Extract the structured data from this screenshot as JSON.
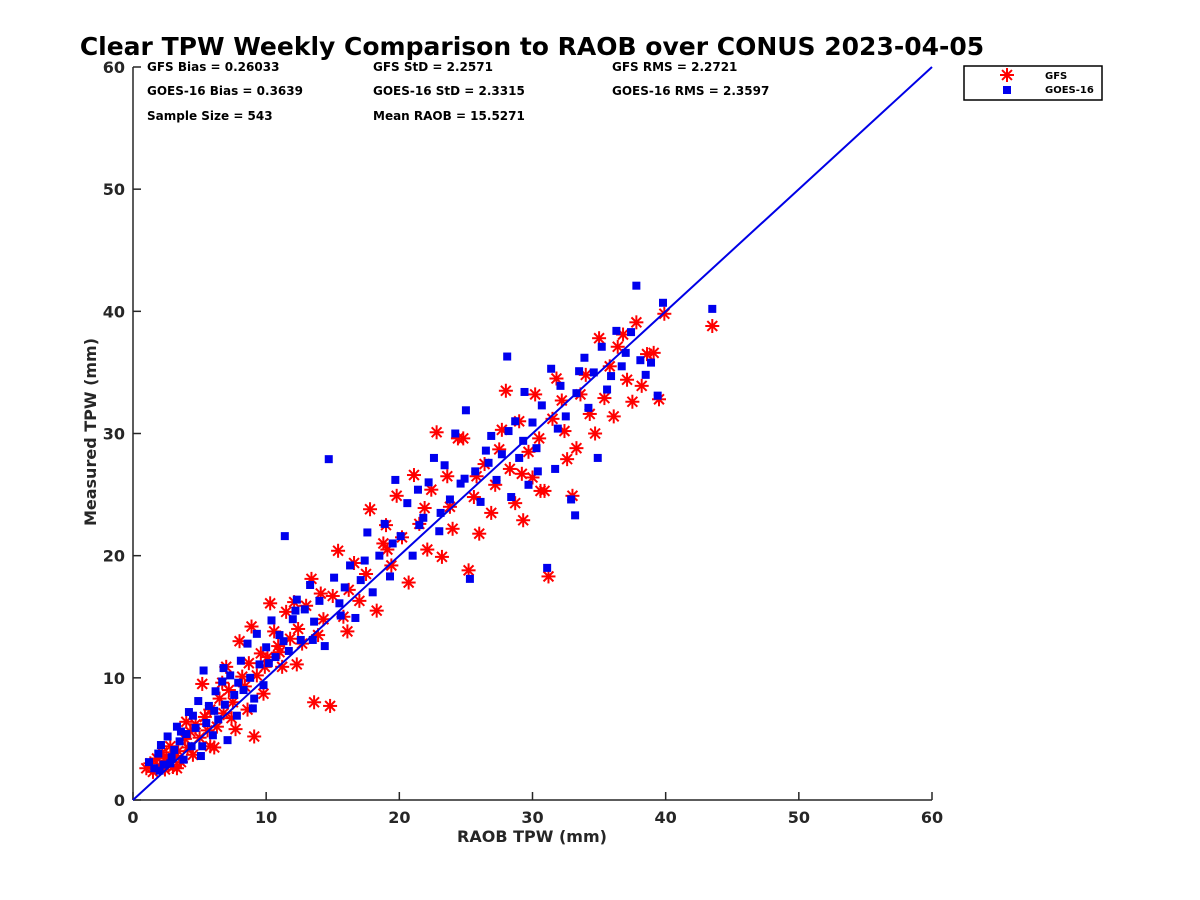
{
  "chart_data": {
    "type": "scatter",
    "title": "Clear TPW Weekly Comparison to RAOB over CONUS 2023-04-05",
    "xlabel": "RAOB TPW (mm)",
    "ylabel": "Measured TPW (mm)",
    "xlim": [
      0,
      60
    ],
    "ylim": [
      0,
      60
    ],
    "xticks": [
      "0",
      "10",
      "20",
      "30",
      "40",
      "50",
      "60"
    ],
    "yticks": [
      "0",
      "10",
      "20",
      "30",
      "40",
      "50",
      "60"
    ],
    "grid": false,
    "legend_position": "outside-top-right",
    "reference_line": {
      "from": [
        0,
        0
      ],
      "to": [
        60,
        60
      ],
      "color": "#0000e6"
    },
    "stats": [
      "GFS Bias = 0.26033",
      "GFS StD = 2.2571",
      "GFS RMS = 2.2721",
      "GOES-16 Bias = 0.3639",
      "GOES-16 StD = 2.3315",
      "GOES-16 RMS = 2.3597",
      "Sample Size = 543",
      "Mean RAOB = 15.5271"
    ],
    "series": [
      {
        "name": "GFS",
        "marker": "asterisk",
        "color": "#ff0000",
        "points": [
          [
            1.0,
            2.6
          ],
          [
            1.3,
            3.0
          ],
          [
            1.5,
            2.3
          ],
          [
            1.8,
            3.4
          ],
          [
            2.0,
            2.8
          ],
          [
            2.2,
            3.9
          ],
          [
            2.4,
            2.5
          ],
          [
            2.6,
            3.2
          ],
          [
            2.8,
            4.4
          ],
          [
            3.0,
            2.7
          ],
          [
            3.2,
            3.6
          ],
          [
            3.4,
            4.0
          ],
          [
            3.6,
            3.1
          ],
          [
            3.9,
            5.0
          ],
          [
            4.1,
            4.3
          ],
          [
            4.3,
            5.6
          ],
          [
            4.5,
            3.7
          ],
          [
            4.7,
            6.2
          ],
          [
            5.0,
            5.1
          ],
          [
            5.2,
            9.5
          ],
          [
            5.4,
            6.8
          ],
          [
            5.6,
            5.7
          ],
          [
            5.8,
            7.4
          ],
          [
            6.1,
            4.3
          ],
          [
            6.3,
            6.0
          ],
          [
            6.5,
            8.3
          ],
          [
            6.8,
            7.1
          ],
          [
            7.0,
            10.9
          ],
          [
            7.2,
            9.0
          ],
          [
            7.5,
            8.0
          ],
          [
            7.7,
            5.8
          ],
          [
            8.0,
            13.0
          ],
          [
            8.2,
            10.1
          ],
          [
            8.4,
            9.3
          ],
          [
            8.7,
            11.2
          ],
          [
            8.9,
            14.2
          ],
          [
            9.1,
            5.2
          ],
          [
            9.3,
            10.2
          ],
          [
            9.6,
            12.0
          ],
          [
            9.8,
            8.7
          ],
          [
            10.1,
            11.7
          ],
          [
            10.3,
            16.1
          ],
          [
            10.6,
            13.8
          ],
          [
            10.9,
            12.6
          ],
          [
            11.2,
            10.9
          ],
          [
            11.5,
            15.4
          ],
          [
            11.8,
            13.2
          ],
          [
            12.1,
            16.2
          ],
          [
            12.4,
            14.0
          ],
          [
            12.7,
            12.8
          ],
          [
            13.0,
            15.9
          ],
          [
            13.4,
            18.1
          ],
          [
            13.6,
            8.0
          ],
          [
            13.9,
            13.5
          ],
          [
            14.3,
            14.8
          ],
          [
            14.8,
            7.7
          ],
          [
            15.0,
            16.7
          ],
          [
            15.4,
            20.4
          ],
          [
            15.8,
            15.0
          ],
          [
            16.2,
            17.2
          ],
          [
            16.6,
            19.4
          ],
          [
            17.0,
            16.3
          ],
          [
            17.5,
            18.5
          ],
          [
            17.8,
            23.8
          ],
          [
            18.3,
            15.5
          ],
          [
            18.8,
            21.0
          ],
          [
            19.0,
            22.5
          ],
          [
            19.4,
            19.2
          ],
          [
            19.8,
            24.9
          ],
          [
            20.2,
            21.5
          ],
          [
            20.7,
            17.8
          ],
          [
            21.1,
            26.6
          ],
          [
            21.5,
            22.6
          ],
          [
            21.9,
            23.9
          ],
          [
            22.4,
            25.4
          ],
          [
            22.8,
            30.1
          ],
          [
            23.2,
            19.9
          ],
          [
            23.6,
            26.5
          ],
          [
            24.0,
            22.2
          ],
          [
            24.4,
            29.6
          ],
          [
            24.8,
            29.6
          ],
          [
            25.2,
            18.8
          ],
          [
            25.6,
            24.8
          ],
          [
            26.0,
            21.8
          ],
          [
            26.4,
            27.5
          ],
          [
            26.9,
            23.5
          ],
          [
            27.2,
            25.8
          ],
          [
            27.7,
            30.3
          ],
          [
            28.0,
            33.5
          ],
          [
            28.3,
            27.1
          ],
          [
            28.7,
            24.3
          ],
          [
            29.0,
            31.0
          ],
          [
            29.3,
            22.9
          ],
          [
            29.7,
            28.5
          ],
          [
            30.0,
            26.4
          ],
          [
            30.2,
            33.2
          ],
          [
            30.5,
            29.6
          ],
          [
            30.9,
            25.3
          ],
          [
            31.2,
            18.3
          ],
          [
            31.5,
            31.2
          ],
          [
            31.8,
            34.5
          ],
          [
            32.2,
            32.7
          ],
          [
            32.6,
            27.9
          ],
          [
            33.0,
            24.9
          ],
          [
            33.3,
            28.8
          ],
          [
            33.6,
            33.2
          ],
          [
            34.0,
            34.8
          ],
          [
            34.3,
            31.6
          ],
          [
            34.7,
            30.0
          ],
          [
            35.0,
            37.8
          ],
          [
            35.4,
            32.9
          ],
          [
            35.8,
            35.5
          ],
          [
            36.1,
            31.4
          ],
          [
            36.4,
            37.1
          ],
          [
            36.8,
            38.1
          ],
          [
            37.1,
            34.4
          ],
          [
            37.5,
            32.6
          ],
          [
            37.8,
            39.1
          ],
          [
            38.2,
            33.9
          ],
          [
            38.6,
            36.5
          ],
          [
            39.1,
            36.6
          ],
          [
            39.5,
            32.8
          ],
          [
            39.9,
            39.8
          ],
          [
            43.5,
            38.8
          ],
          [
            2.5,
            3.5
          ],
          [
            3.3,
            2.6
          ],
          [
            4.0,
            6.4
          ],
          [
            5.8,
            4.4
          ],
          [
            6.7,
            9.6
          ],
          [
            7.4,
            6.7
          ],
          [
            8.6,
            7.4
          ],
          [
            9.9,
            10.9
          ],
          [
            11.0,
            12.1
          ],
          [
            12.3,
            11.1
          ],
          [
            14.1,
            16.9
          ],
          [
            16.1,
            13.8
          ],
          [
            19.1,
            20.5
          ],
          [
            22.1,
            20.5
          ],
          [
            23.8,
            24.0
          ],
          [
            25.8,
            26.5
          ],
          [
            27.5,
            28.7
          ],
          [
            29.2,
            26.7
          ],
          [
            30.6,
            25.3
          ],
          [
            32.4,
            30.2
          ]
        ]
      },
      {
        "name": "GOES-16",
        "marker": "square",
        "color": "#0000ee",
        "points": [
          [
            1.2,
            3.1
          ],
          [
            1.6,
            2.6
          ],
          [
            1.9,
            3.8
          ],
          [
            2.1,
            4.5
          ],
          [
            2.3,
            2.9
          ],
          [
            2.6,
            5.2
          ],
          [
            2.9,
            3.5
          ],
          [
            3.1,
            4.1
          ],
          [
            3.3,
            6.0
          ],
          [
            3.5,
            4.8
          ],
          [
            3.8,
            3.3
          ],
          [
            4.0,
            5.4
          ],
          [
            4.2,
            7.2
          ],
          [
            4.4,
            4.4
          ],
          [
            4.7,
            5.9
          ],
          [
            4.9,
            8.1
          ],
          [
            5.1,
            3.6
          ],
          [
            5.3,
            10.6
          ],
          [
            5.5,
            6.3
          ],
          [
            5.7,
            7.7
          ],
          [
            6.0,
            5.3
          ],
          [
            6.2,
            8.9
          ],
          [
            6.4,
            6.6
          ],
          [
            6.7,
            9.7
          ],
          [
            6.9,
            7.8
          ],
          [
            7.1,
            4.9
          ],
          [
            7.3,
            10.2
          ],
          [
            7.6,
            8.6
          ],
          [
            7.8,
            6.9
          ],
          [
            8.1,
            11.4
          ],
          [
            8.3,
            9.0
          ],
          [
            8.6,
            12.8
          ],
          [
            8.8,
            10.0
          ],
          [
            9.0,
            7.5
          ],
          [
            9.3,
            13.6
          ],
          [
            9.5,
            11.1
          ],
          [
            9.8,
            9.4
          ],
          [
            10.0,
            12.5
          ],
          [
            10.4,
            14.7
          ],
          [
            10.7,
            11.7
          ],
          [
            11.0,
            13.5
          ],
          [
            11.4,
            21.6
          ],
          [
            11.7,
            12.2
          ],
          [
            12.0,
            14.8
          ],
          [
            12.3,
            16.4
          ],
          [
            12.6,
            13.1
          ],
          [
            12.9,
            15.6
          ],
          [
            13.3,
            17.6
          ],
          [
            13.6,
            14.6
          ],
          [
            14.0,
            16.3
          ],
          [
            14.4,
            12.6
          ],
          [
            14.7,
            27.9
          ],
          [
            15.1,
            18.2
          ],
          [
            15.5,
            16.1
          ],
          [
            15.9,
            17.4
          ],
          [
            16.3,
            19.2
          ],
          [
            16.7,
            14.9
          ],
          [
            17.1,
            18.0
          ],
          [
            17.6,
            21.9
          ],
          [
            18.0,
            17.0
          ],
          [
            18.5,
            20.0
          ],
          [
            18.9,
            22.6
          ],
          [
            19.3,
            18.3
          ],
          [
            19.7,
            26.2
          ],
          [
            20.1,
            21.6
          ],
          [
            20.6,
            24.3
          ],
          [
            21.0,
            20.0
          ],
          [
            21.4,
            25.4
          ],
          [
            21.8,
            23.1
          ],
          [
            22.2,
            26.0
          ],
          [
            22.6,
            28.0
          ],
          [
            23.0,
            22.0
          ],
          [
            23.4,
            27.4
          ],
          [
            23.8,
            24.6
          ],
          [
            24.2,
            30.0
          ],
          [
            24.6,
            25.9
          ],
          [
            25.0,
            31.9
          ],
          [
            25.3,
            18.1
          ],
          [
            25.7,
            26.9
          ],
          [
            26.1,
            24.4
          ],
          [
            26.5,
            28.6
          ],
          [
            26.9,
            29.8
          ],
          [
            27.3,
            26.2
          ],
          [
            27.7,
            28.3
          ],
          [
            28.1,
            36.3
          ],
          [
            28.4,
            24.8
          ],
          [
            28.7,
            31.0
          ],
          [
            29.0,
            28.0
          ],
          [
            29.4,
            33.4
          ],
          [
            29.7,
            25.8
          ],
          [
            30.0,
            30.9
          ],
          [
            30.3,
            28.8
          ],
          [
            30.7,
            32.3
          ],
          [
            31.1,
            19.0
          ],
          [
            31.4,
            35.3
          ],
          [
            31.7,
            27.1
          ],
          [
            32.1,
            33.9
          ],
          [
            32.5,
            31.4
          ],
          [
            32.9,
            24.6
          ],
          [
            33.2,
            23.3
          ],
          [
            33.5,
            35.1
          ],
          [
            33.9,
            36.2
          ],
          [
            34.2,
            32.1
          ],
          [
            34.6,
            35.0
          ],
          [
            34.9,
            28.0
          ],
          [
            35.2,
            37.1
          ],
          [
            35.6,
            33.6
          ],
          [
            35.9,
            34.7
          ],
          [
            36.3,
            38.4
          ],
          [
            36.7,
            35.5
          ],
          [
            37.0,
            36.6
          ],
          [
            37.4,
            38.3
          ],
          [
            37.8,
            42.1
          ],
          [
            38.1,
            36.0
          ],
          [
            38.5,
            34.8
          ],
          [
            38.9,
            35.8
          ],
          [
            39.4,
            33.1
          ],
          [
            39.8,
            40.7
          ],
          [
            43.5,
            40.2
          ],
          [
            2.0,
            2.4
          ],
          [
            2.8,
            3.0
          ],
          [
            3.6,
            5.6
          ],
          [
            4.5,
            6.9
          ],
          [
            5.2,
            4.4
          ],
          [
            6.1,
            7.3
          ],
          [
            6.8,
            10.8
          ],
          [
            7.9,
            9.6
          ],
          [
            9.1,
            8.3
          ],
          [
            10.2,
            11.2
          ],
          [
            11.3,
            13.0
          ],
          [
            12.2,
            15.5
          ],
          [
            13.5,
            13.1
          ],
          [
            15.6,
            15.1
          ],
          [
            17.4,
            19.6
          ],
          [
            19.5,
            21.0
          ],
          [
            21.5,
            22.5
          ],
          [
            23.1,
            23.5
          ],
          [
            24.9,
            26.3
          ],
          [
            26.7,
            27.6
          ],
          [
            28.2,
            30.2
          ],
          [
            29.3,
            29.4
          ],
          [
            30.4,
            26.9
          ],
          [
            31.9,
            30.4
          ],
          [
            33.3,
            33.3
          ]
        ]
      }
    ]
  }
}
